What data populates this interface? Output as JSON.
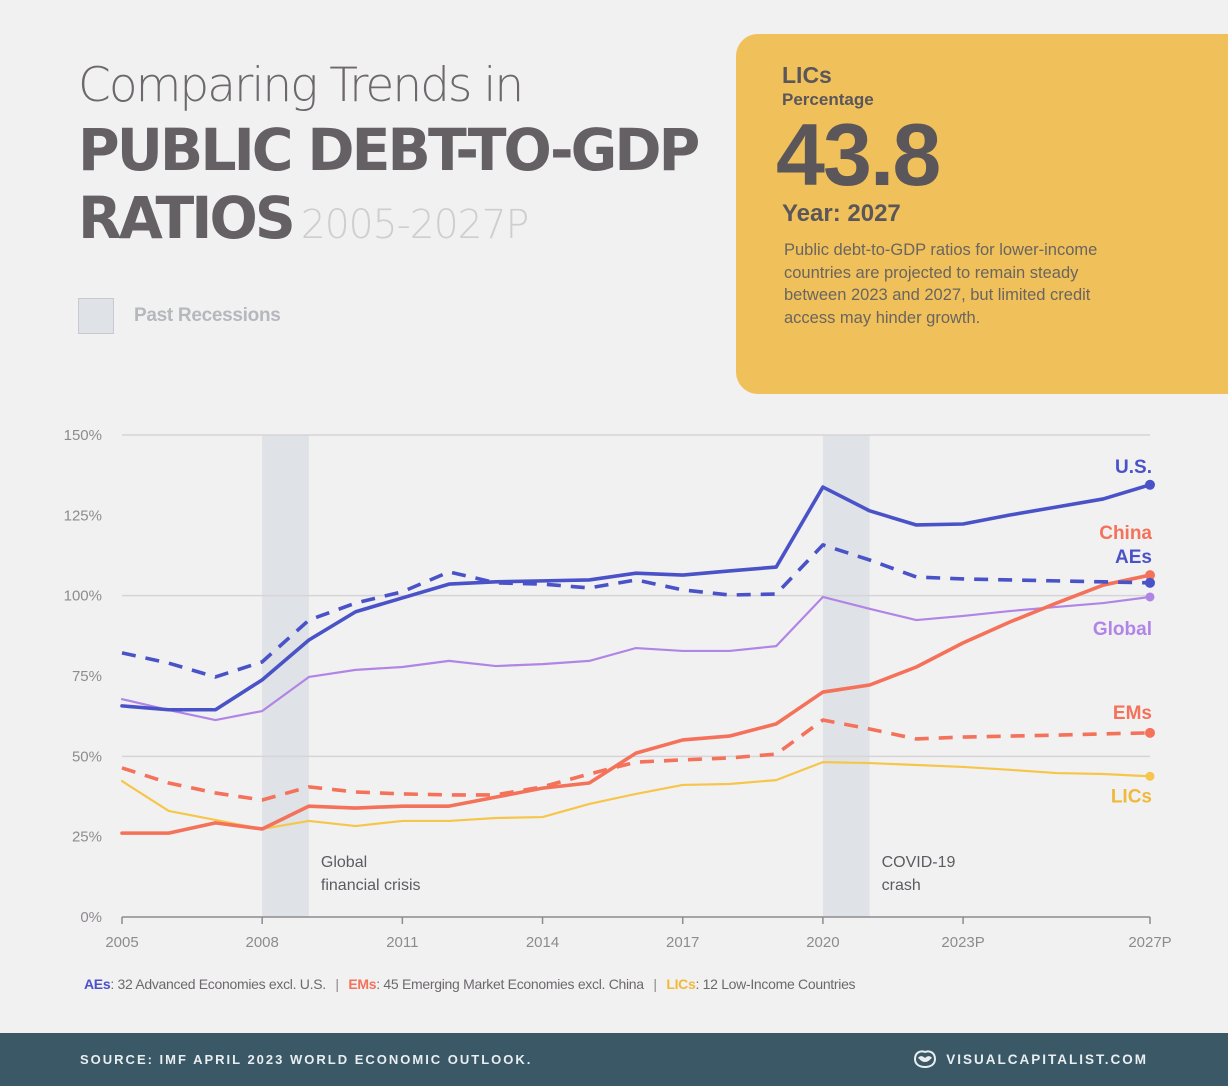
{
  "header": {
    "title_line1": "Comparing Trends in",
    "title_line2": "PUBLIC DEBT-TO-GDP",
    "title_line3": "RATIOS",
    "title_years": "2005-2027P"
  },
  "legend": {
    "recession_label": "Past Recessions"
  },
  "callout": {
    "series": "LICs",
    "metric": "Percentage",
    "value": "43.8",
    "year_label": "Year: 2027",
    "description": "Public debt-to-GDP ratios for lower-income countries are projected to remain steady between 2023 and 2027, but limited credit access may hinder growth.",
    "color": "#f0c05a"
  },
  "chart_data": {
    "type": "line",
    "title": "Comparing Trends in Public Debt-to-GDP Ratios 2005-2027P",
    "xlabel": "",
    "ylabel": "",
    "x": [
      2005,
      2006,
      2007,
      2008,
      2009,
      2010,
      2011,
      2012,
      2013,
      2014,
      2015,
      2016,
      2017,
      2018,
      2019,
      2020,
      2021,
      2022,
      2023,
      2024,
      2025,
      2026,
      2027
    ],
    "x_ticks": [
      2005,
      2008,
      2011,
      2014,
      2017,
      2020,
      2023,
      2027
    ],
    "x_tick_labels": [
      "2005",
      "2008",
      "2011",
      "2014",
      "2017",
      "2020",
      "2023P",
      "2027P"
    ],
    "xlim": [
      2005,
      2027
    ],
    "ylim": [
      0,
      150
    ],
    "y_ticks": [
      0,
      25,
      50,
      75,
      100,
      125,
      150
    ],
    "y_tick_labels": [
      "0%",
      "25%",
      "50%",
      "75%",
      "100%",
      "125%",
      "150%"
    ],
    "gridlines_at": [
      50,
      100,
      150
    ],
    "recessions": [
      {
        "start": 2008,
        "end": 2009,
        "label_line1": "Global",
        "label_line2": "financial crisis"
      },
      {
        "start": 2020,
        "end": 2021,
        "label_line1": "COVID-19",
        "label_line2": "crash"
      }
    ],
    "series": [
      {
        "name": "U.S.",
        "color": "#4a52c8",
        "dashed": false,
        "width": "bold",
        "values": [
          65.7,
          64.5,
          64.5,
          73.8,
          86.2,
          95.0,
          99.3,
          103.6,
          104.3,
          104.6,
          104.9,
          107.0,
          106.4,
          107.7,
          108.9,
          133.8,
          126.4,
          122.0,
          122.3,
          125.1,
          127.6,
          130.1,
          134.5
        ]
      },
      {
        "name": "AEs",
        "color": "#4a52c8",
        "dashed": true,
        "width": "bold",
        "values": [
          82.2,
          79.0,
          74.7,
          79.4,
          92.4,
          97.7,
          101.2,
          107.4,
          104.0,
          103.6,
          102.4,
          104.9,
          101.8,
          100.2,
          100.5,
          115.8,
          111.1,
          105.8,
          105.2,
          104.9,
          104.6,
          104.3,
          104.0
        ]
      },
      {
        "name": "Global",
        "color": "#b085e6",
        "dashed": false,
        "width": "thin",
        "values": [
          67.8,
          64.4,
          61.3,
          64.1,
          74.7,
          76.9,
          77.8,
          79.7,
          78.1,
          78.7,
          79.7,
          83.7,
          82.8,
          82.8,
          84.3,
          99.6,
          95.9,
          92.4,
          93.7,
          95.2,
          96.5,
          97.7,
          99.6
        ]
      },
      {
        "name": "China",
        "color": "#f4715a",
        "dashed": false,
        "width": "bold",
        "values": [
          26.1,
          26.1,
          29.3,
          27.4,
          34.5,
          33.9,
          34.5,
          34.5,
          37.3,
          40.1,
          41.7,
          51.0,
          55.1,
          56.3,
          60.1,
          70.0,
          72.2,
          77.8,
          85.3,
          91.8,
          97.7,
          103.3,
          106.4
        ]
      },
      {
        "name": "EMs",
        "color": "#f4715a",
        "dashed": true,
        "width": "bold",
        "values": [
          46.4,
          41.7,
          38.6,
          36.4,
          40.5,
          38.9,
          38.3,
          38.0,
          38.0,
          40.5,
          44.5,
          48.2,
          48.9,
          49.5,
          50.7,
          61.3,
          58.5,
          55.4,
          56.0,
          56.3,
          56.6,
          57.0,
          57.3
        ]
      },
      {
        "name": "LICs",
        "color": "#f6c64a",
        "dashed": false,
        "width": "thin",
        "values": [
          42.3,
          33.0,
          30.2,
          27.4,
          29.9,
          28.3,
          29.9,
          29.9,
          30.8,
          31.1,
          35.2,
          38.3,
          41.1,
          41.4,
          42.6,
          48.2,
          47.9,
          47.3,
          46.7,
          45.8,
          44.8,
          44.5,
          43.8
        ]
      }
    ],
    "legend": "end-of-line labels (right)"
  },
  "footnote": {
    "items": [
      {
        "key": "AEs",
        "text": ": 32 Advanced Economies excl. U.S.",
        "color": "#4a52c8"
      },
      {
        "key": "EMs",
        "text": ": 45 Emerging Market Economies excl. China",
        "color": "#f4715a"
      },
      {
        "key": "LICs",
        "text": ": 12 Low-Income Countries",
        "color": "#f0b93a"
      }
    ],
    "separator": "|"
  },
  "footer": {
    "source": "SOURCE: IMF APRIL 2023 WORLD ECONOMIC OUTLOOK.",
    "brand": "VISUALCAPITALIST.COM",
    "brand_icon": "visual-capitalist-logo-icon",
    "background": "#3a5866"
  }
}
